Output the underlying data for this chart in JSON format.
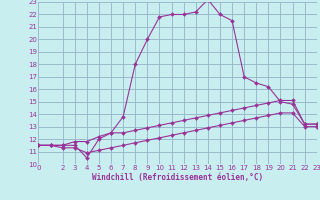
{
  "xlabel": "Windchill (Refroidissement éolien,°C)",
  "bg_color": "#c8eef0",
  "grid_color": "#99bbcc",
  "line_color": "#993399",
  "ylim": [
    10,
    23
  ],
  "xlim": [
    0,
    23
  ],
  "yticks": [
    10,
    11,
    12,
    13,
    14,
    15,
    16,
    17,
    18,
    19,
    20,
    21,
    22,
    23
  ],
  "xticks": [
    0,
    2,
    3,
    4,
    5,
    6,
    7,
    8,
    9,
    10,
    11,
    12,
    13,
    14,
    15,
    16,
    17,
    18,
    19,
    20,
    21,
    22,
    23
  ],
  "hours": [
    0,
    1,
    2,
    3,
    4,
    5,
    6,
    7,
    8,
    9,
    10,
    11,
    12,
    13,
    14,
    15,
    16,
    17,
    18,
    19,
    20,
    21,
    22,
    23
  ],
  "temp_curve": [
    11.5,
    11.5,
    11.5,
    11.5,
    10.5,
    12.0,
    12.5,
    13.8,
    18.0,
    20.0,
    21.8,
    22.0,
    22.0,
    22.2,
    23.2,
    22.0,
    21.5,
    17.0,
    16.5,
    16.2,
    15.0,
    14.8,
    13.2,
    13.2
  ],
  "wc_curve1": [
    11.5,
    11.5,
    11.5,
    11.8,
    11.8,
    12.2,
    12.5,
    12.5,
    12.7,
    12.9,
    13.1,
    13.3,
    13.5,
    13.7,
    13.9,
    14.1,
    14.3,
    14.5,
    14.7,
    14.9,
    15.1,
    15.1,
    13.2,
    13.2
  ],
  "wc_curve2": [
    11.5,
    11.5,
    11.3,
    11.3,
    10.9,
    11.1,
    11.3,
    11.5,
    11.7,
    11.9,
    12.1,
    12.3,
    12.5,
    12.7,
    12.9,
    13.1,
    13.3,
    13.5,
    13.7,
    13.9,
    14.1,
    14.1,
    13.0,
    13.0
  ]
}
